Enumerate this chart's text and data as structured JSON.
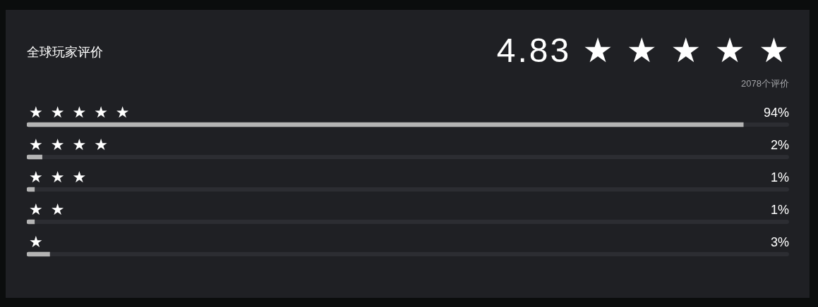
{
  "chart_data": {
    "type": "bar",
    "orientation": "horizontal",
    "title": "全球玩家评价",
    "annotations": [
      "4.83 ★ ★ ★ ★ ★",
      "2078个评价"
    ],
    "categories": [
      "★ ★ ★ ★ ★",
      "★ ★ ★ ★",
      "★ ★ ★",
      "★ ★",
      "★"
    ],
    "values": [
      94,
      2,
      1,
      1,
      3
    ],
    "value_labels": [
      "94%",
      "2%",
      "1%",
      "1%",
      "3%"
    ],
    "color": "#b4b4b4",
    "xlim": [
      0,
      100
    ],
    "tick_labels": "y"
  }
}
